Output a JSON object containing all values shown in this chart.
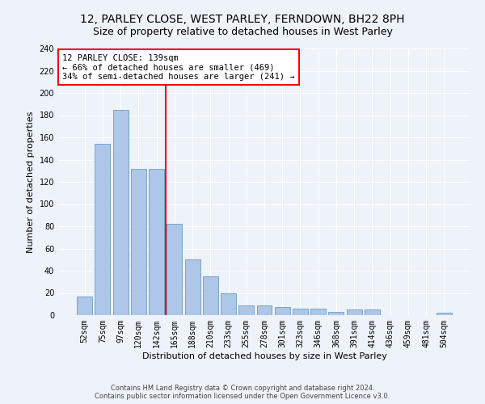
{
  "title1": "12, PARLEY CLOSE, WEST PARLEY, FERNDOWN, BH22 8PH",
  "title2": "Size of property relative to detached houses in West Parley",
  "xlabel": "Distribution of detached houses by size in West Parley",
  "ylabel": "Number of detached properties",
  "categories": [
    "52sqm",
    "75sqm",
    "97sqm",
    "120sqm",
    "142sqm",
    "165sqm",
    "188sqm",
    "210sqm",
    "233sqm",
    "255sqm",
    "278sqm",
    "301sqm",
    "323sqm",
    "346sqm",
    "368sqm",
    "391sqm",
    "414sqm",
    "436sqm",
    "459sqm",
    "481sqm",
    "504sqm"
  ],
  "values": [
    17,
    154,
    185,
    132,
    132,
    82,
    50,
    35,
    20,
    9,
    9,
    7,
    6,
    6,
    3,
    5,
    5,
    0,
    0,
    0,
    2
  ],
  "bar_color": "#aec6e8",
  "bar_edge_color": "#6a9ec2",
  "vline_x": 4.5,
  "vline_color": "red",
  "annotation_text": "12 PARLEY CLOSE: 139sqm\n← 66% of detached houses are smaller (469)\n34% of semi-detached houses are larger (241) →",
  "annotation_box_color": "white",
  "annotation_box_edge": "red",
  "ylim": [
    0,
    240
  ],
  "yticks": [
    0,
    20,
    40,
    60,
    80,
    100,
    120,
    140,
    160,
    180,
    200,
    220,
    240
  ],
  "footer1": "Contains HM Land Registry data © Crown copyright and database right 2024.",
  "footer2": "Contains public sector information licensed under the Open Government Licence v3.0.",
  "background_color": "#eef2f9",
  "grid_color": "white",
  "title_fontsize": 10,
  "subtitle_fontsize": 9,
  "axis_label_fontsize": 8,
  "tick_fontsize": 7,
  "annotation_fontsize": 7.5,
  "footer_fontsize": 6
}
